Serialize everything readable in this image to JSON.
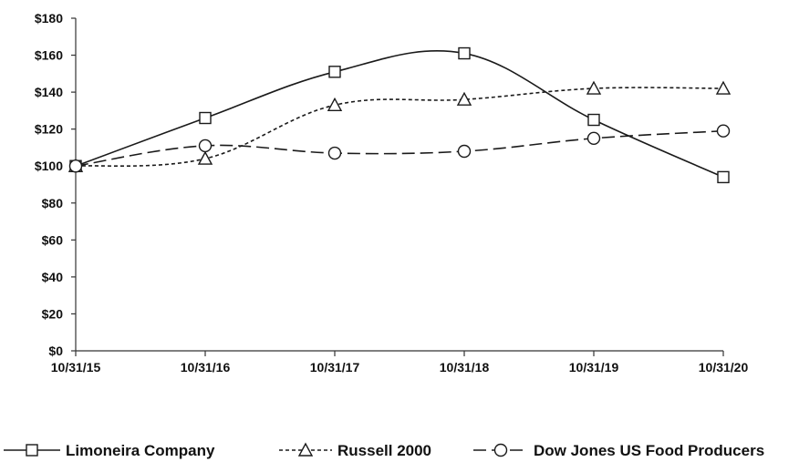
{
  "chart_data": {
    "type": "line",
    "x": [
      "10/31/15",
      "10/31/16",
      "10/31/17",
      "10/31/18",
      "10/31/19",
      "10/31/20"
    ],
    "ylim": [
      0,
      180
    ],
    "y_ticks": [
      0,
      20,
      40,
      60,
      80,
      100,
      120,
      140,
      160,
      180
    ],
    "y_tick_labels": [
      "$0",
      "$20",
      "$40",
      "$60",
      "$80",
      "$100",
      "$120",
      "$140",
      "$160",
      "$180"
    ],
    "grid": false,
    "legend_position": "bottom",
    "series": [
      {
        "name": "Limoneira Company",
        "values": [
          100,
          126,
          151,
          161,
          125,
          94
        ],
        "line_style": "solid",
        "marker": "square",
        "color": "#1a1a1a"
      },
      {
        "name": "Russell 2000",
        "values": [
          100,
          104,
          133,
          136,
          142,
          142
        ],
        "line_style": "dotted",
        "marker": "triangle",
        "color": "#1a1a1a"
      },
      {
        "name": "Dow Jones US Food Producers",
        "values": [
          100,
          111,
          107,
          108,
          115,
          119
        ],
        "line_style": "dashed",
        "marker": "circle",
        "color": "#1a1a1a"
      }
    ]
  }
}
